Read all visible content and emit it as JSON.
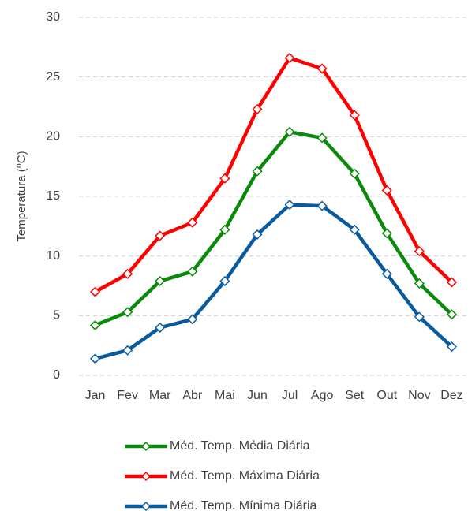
{
  "chart_data": {
    "type": "line",
    "y_label": "Temperatura (⁰C)",
    "categories": [
      "Jan",
      "Fev",
      "Mar",
      "Abr",
      "Mai",
      "Jun",
      "Jul",
      "Ago",
      "Set",
      "Out",
      "Nov",
      "Dez"
    ],
    "series": [
      {
        "name": "Méd. Temp. Média Diária",
        "color": "#0a8a0a",
        "values": [
          4.2,
          5.3,
          7.9,
          8.7,
          12.2,
          17.1,
          20.4,
          19.9,
          16.9,
          11.9,
          7.7,
          5.1
        ]
      },
      {
        "name": "Méd. Temp. Máxima Diária",
        "color": "#ff0000",
        "values": [
          7.0,
          8.5,
          11.7,
          12.8,
          16.5,
          22.3,
          26.6,
          25.7,
          21.8,
          15.5,
          10.4,
          7.8
        ]
      },
      {
        "name": "Méd. Temp. Mínima Diária",
        "color": "#0a5aa0",
        "values": [
          1.4,
          2.1,
          4.0,
          4.7,
          7.9,
          11.8,
          14.3,
          14.2,
          12.2,
          8.5,
          4.9,
          2.4
        ]
      }
    ],
    "ylim": [
      0,
      30
    ],
    "yticks": [
      0,
      5,
      10,
      15,
      20,
      25,
      30
    ],
    "grid": true,
    "legend": "bottom"
  }
}
